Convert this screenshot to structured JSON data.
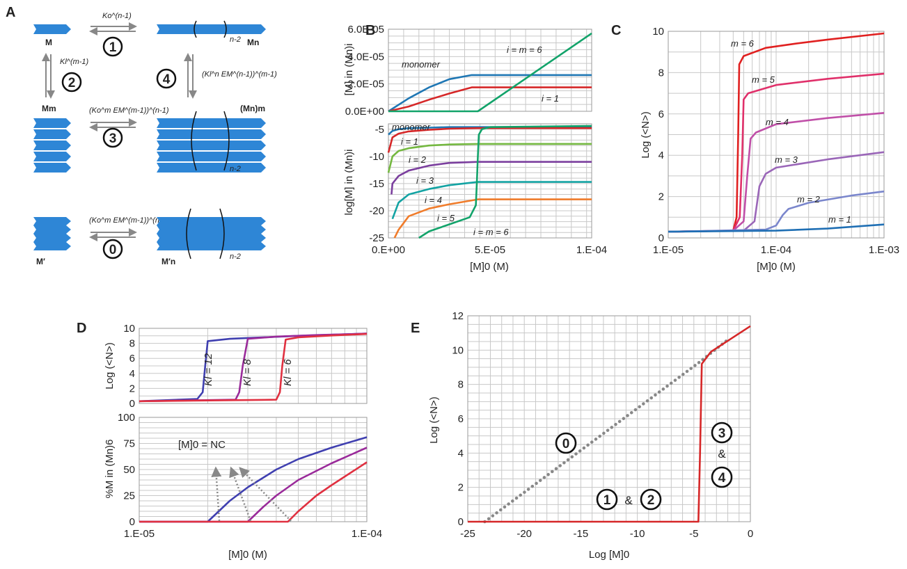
{
  "colors": {
    "blue": "#1f77b4",
    "red": "#d62728",
    "green": "#12a36a",
    "lightgreen": "#74b840",
    "purple": "#7b3f9e",
    "teal": "#13a3a3",
    "orange": "#f07c2b",
    "block": "#2e86d6",
    "grey": "#888888",
    "dblue": "#3f3fb0",
    "dpurple": "#9a2a9a",
    "dred": "#e03040"
  },
  "panel_A": {
    "label": "A",
    "species": {
      "M": "M",
      "Mn": "Mn",
      "Mm": "Mm",
      "Mnm": "(Mn)m",
      "Mp": "M′",
      "Mpn": "M′n"
    },
    "brackets": {
      "n2_a": "n-2",
      "n2_b": "n-2",
      "n2_c": "n-2"
    },
    "steps": [
      {
        "circle": "1",
        "rate": "Ko^(n-1)"
      },
      {
        "circle": "2",
        "rate": "Kl^(m-1)"
      },
      {
        "circle": "3",
        "rate": "(Ko^m EM^(m-1))^(n-1)"
      },
      {
        "circle": "4",
        "rate": "(Kl^n EM^(n-1))^(m-1)"
      },
      {
        "circle": "0",
        "rate": "(Ko^m EM^(m-1))^(n-1)"
      }
    ]
  },
  "chart_data": [
    {
      "panel": "B-top",
      "label": "B",
      "type": "line",
      "xlim": [
        0,
        0.0001
      ],
      "ylim": [
        0,
        6e-05
      ],
      "x_ticks": [
        "0.E+00",
        "5.E-05",
        "1.E-04"
      ],
      "y_ticks": [
        "0.0E+00",
        "2.0E-05",
        "4.0E-05",
        "6.0E-05"
      ],
      "ylabel": "[M] in (Mn)i",
      "series": [
        {
          "name": "monomer",
          "color": "blue",
          "x": [
            0,
            1e-05,
            2e-05,
            3e-05,
            4.1e-05,
            0.0001
          ],
          "y": [
            0,
            9.5e-06,
            1.75e-05,
            2.35e-05,
            2.65e-05,
            2.65e-05
          ]
        },
        {
          "name": "i = 1",
          "color": "red",
          "x": [
            0,
            1e-05,
            2e-05,
            3e-05,
            4.1e-05,
            0.0001
          ],
          "y": [
            0,
            3.5e-06,
            8.5e-06,
            1.3e-05,
            1.75e-05,
            1.75e-05
          ]
        },
        {
          "name": "i = m = 6",
          "color": "green",
          "x": [
            0,
            4.4e-05,
            0.0001
          ],
          "y": [
            0,
            0,
            5.7e-05
          ]
        }
      ]
    },
    {
      "panel": "B-bottom",
      "type": "line",
      "xlim": [
        0,
        0.0001
      ],
      "ylim": [
        -25,
        -4
      ],
      "x_ticks": [
        "0.E+00",
        "5.E-05",
        "1.E-04"
      ],
      "y_ticks": [
        "-5",
        "-10",
        "-15",
        "-20",
        "-25"
      ],
      "xlabel": "[M]0 (M)",
      "ylabel": "log[M] in (Mn)i",
      "series": [
        {
          "name": "monomer",
          "color": "blue",
          "x": [
            0,
            2e-06,
            5e-06,
            1e-05,
            2e-05,
            3e-05,
            4.4e-05,
            0.0001
          ],
          "y": [
            -6,
            -5.3,
            -5,
            -4.8,
            -4.7,
            -4.6,
            -4.6,
            -4.6
          ]
        },
        {
          "name": "i = 1",
          "color": "red",
          "x": [
            0,
            2e-06,
            5e-06,
            1e-05,
            2e-05,
            3e-05,
            4.4e-05,
            0.0001
          ],
          "y": [
            -9.3,
            -6.5,
            -5.8,
            -5.4,
            -5.1,
            -4.9,
            -4.8,
            -4.8
          ]
        },
        {
          "name": "i = 2",
          "color": "lightgreen",
          "x": [
            0,
            2e-06,
            5e-06,
            1e-05,
            2e-05,
            3e-05,
            4.4e-05,
            0.0001
          ],
          "y": [
            -13,
            -10,
            -9,
            -8.5,
            -8,
            -7.8,
            -7.7,
            -7.7
          ]
        },
        {
          "name": "i = 3",
          "color": "purple",
          "x": [
            1.5e-06,
            2e-06,
            5e-06,
            1e-05,
            2e-05,
            3e-05,
            4.4e-05,
            0.0001
          ],
          "y": [
            -17,
            -15,
            -13.6,
            -12.6,
            -11.7,
            -11.2,
            -11,
            -11
          ]
        },
        {
          "name": "i = 4",
          "color": "teal",
          "x": [
            2e-06,
            5e-06,
            1e-05,
            2e-05,
            3e-05,
            4.4e-05,
            0.0001
          ],
          "y": [
            -21.5,
            -18.5,
            -17,
            -16,
            -15.3,
            -14.7,
            -14.7
          ]
        },
        {
          "name": "i = 5",
          "color": "orange",
          "x": [
            3e-06,
            5e-06,
            1e-05,
            2e-05,
            3e-05,
            4.4e-05,
            0.0001
          ],
          "y": [
            -25,
            -23.5,
            -21,
            -19.6,
            -18.8,
            -17.9,
            -17.9
          ]
        },
        {
          "name": "i = m = 6",
          "color": "green",
          "x": [
            1.5e-05,
            2e-05,
            3e-05,
            4e-05,
            4.3e-05,
            4.35e-05,
            4.4e-05,
            4.45e-05,
            4.6e-05,
            5e-05,
            0.0001
          ],
          "y": [
            -25,
            -23.8,
            -22.5,
            -21.2,
            -19,
            -15,
            -10,
            -6,
            -5,
            -4.6,
            -4.4
          ]
        }
      ]
    },
    {
      "panel": "C",
      "label": "C",
      "type": "line",
      "xscale": "log",
      "xlim": [
        1e-05,
        0.001
      ],
      "ylim": [
        0,
        10
      ],
      "x_ticks": [
        "1.E-05",
        "1.E-04",
        "1.E-03"
      ],
      "y_ticks": [
        "0",
        "2",
        "4",
        "6",
        "8",
        "10"
      ],
      "xlabel": "[M]0 (M)",
      "ylabel": "Log (<N>)",
      "series": [
        {
          "name": "m = 6",
          "color": "#e02020",
          "x": [
            1e-05,
            4e-05,
            4.3e-05,
            4.45e-05,
            4.55e-05,
            5e-05,
            8e-05,
            0.00015,
            0.0003,
            0.001
          ],
          "y": [
            0.3,
            0.35,
            1,
            5,
            8.4,
            8.8,
            9.2,
            9.4,
            9.6,
            9.9
          ]
        },
        {
          "name": "m = 5",
          "color": "#e0306a",
          "x": [
            1e-05,
            4e-05,
            4.6e-05,
            4.85e-05,
            5e-05,
            5.5e-05,
            0.0001,
            0.0003,
            0.001
          ],
          "y": [
            0.3,
            0.35,
            1,
            4,
            6.7,
            7,
            7.4,
            7.7,
            7.95
          ]
        },
        {
          "name": "m = 4",
          "color": "#c04fa8",
          "x": [
            1e-05,
            4e-05,
            5e-05,
            5.4e-05,
            5.8e-05,
            6.5e-05,
            0.0001,
            0.0003,
            0.001
          ],
          "y": [
            0.3,
            0.35,
            0.8,
            3,
            4.8,
            5.1,
            5.5,
            5.8,
            6.05
          ]
        },
        {
          "name": "m = 3",
          "color": "#9a66b8",
          "x": [
            1e-05,
            5e-05,
            6.3e-05,
            7e-05,
            8e-05,
            0.0001,
            0.0003,
            0.001
          ],
          "y": [
            0.3,
            0.35,
            0.8,
            2.5,
            3.1,
            3.4,
            3.8,
            4.15
          ]
        },
        {
          "name": "m = 2",
          "color": "#7a86cc",
          "x": [
            1e-05,
            8e-05,
            0.0001,
            0.000115,
            0.00013,
            0.0002,
            0.0005,
            0.001
          ],
          "y": [
            0.3,
            0.4,
            0.6,
            1.1,
            1.4,
            1.7,
            2.05,
            2.25
          ]
        },
        {
          "name": "m = 1",
          "color": "#1f6fb4",
          "x": [
            1e-05,
            0.0001,
            0.0003,
            0.001
          ],
          "y": [
            0.3,
            0.35,
            0.45,
            0.65
          ]
        }
      ]
    },
    {
      "panel": "D-top",
      "label": "D",
      "type": "line",
      "xscale": "log",
      "xlim": [
        1e-05,
        0.0001
      ],
      "ylim": [
        0,
        10
      ],
      "y_ticks": [
        "0",
        "2",
        "4",
        "6",
        "8",
        "10"
      ],
      "ylabel": "Log (<N>)",
      "series": [
        {
          "name": "Kl = 12",
          "color": "dblue",
          "x": [
            1e-05,
            1.8e-05,
            1.9e-05,
            1.95e-05,
            2e-05,
            2.5e-05,
            5e-05,
            0.0001
          ],
          "y": [
            0.3,
            0.6,
            1.5,
            5,
            8.3,
            8.6,
            9,
            9.3
          ]
        },
        {
          "name": "Kl = 8",
          "color": "dpurple",
          "x": [
            1e-05,
            2.65e-05,
            2.75e-05,
            2.85e-05,
            3e-05,
            4e-05,
            6e-05,
            0.0001
          ],
          "y": [
            0.3,
            0.5,
            1.5,
            5,
            8.6,
            8.9,
            9.1,
            9.3
          ]
        },
        {
          "name": "Kl = 6",
          "color": "dred",
          "x": [
            1e-05,
            4e-05,
            4.15e-05,
            4.25e-05,
            4.4e-05,
            5e-05,
            7e-05,
            0.0001
          ],
          "y": [
            0.3,
            0.5,
            1.5,
            5,
            8.5,
            8.8,
            9.05,
            9.25
          ]
        }
      ]
    },
    {
      "panel": "D-bottom",
      "type": "line",
      "xscale": "log",
      "xlim": [
        1e-05,
        0.0001
      ],
      "ylim": [
        0,
        100
      ],
      "x_ticks": [
        "1.E-05",
        "1.E-04"
      ],
      "y_ticks": [
        "0",
        "25",
        "50",
        "75",
        "100"
      ],
      "xlabel": "[M]0 (M)",
      "ylabel": "%M in (Mn)6",
      "annotation": "[M]0 = NC",
      "series": [
        {
          "name": "Kl = 12",
          "color": "dblue",
          "x": [
            1e-05,
            2e-05,
            2.5e-05,
            3e-05,
            4e-05,
            5e-05,
            7e-05,
            0.0001
          ],
          "y": [
            0,
            0,
            20,
            33,
            50,
            60,
            71,
            81
          ]
        },
        {
          "name": "Kl = 8",
          "color": "dpurple",
          "x": [
            1e-05,
            3e-05,
            3.5e-05,
            4e-05,
            5e-05,
            7e-05,
            0.0001
          ],
          "y": [
            0,
            0,
            14,
            25,
            40,
            56,
            71
          ]
        },
        {
          "name": "Kl = 6",
          "color": "dred",
          "x": [
            1e-05,
            4.5e-05,
            5e-05,
            6e-05,
            7e-05,
            0.0001
          ],
          "y": [
            0,
            0,
            10,
            25,
            35,
            57
          ]
        }
      ]
    },
    {
      "panel": "E",
      "label": "E",
      "type": "line",
      "xlim": [
        -25,
        0
      ],
      "ylim": [
        0,
        12
      ],
      "x_ticks": [
        "-25",
        "-20",
        "-15",
        "-10",
        "-5",
        "0"
      ],
      "y_ticks": [
        "0",
        "2",
        "4",
        "6",
        "8",
        "10",
        "12"
      ],
      "xlabel": "Log [M]0",
      "ylabel": "Log (<N>)",
      "series": [
        {
          "name": "0",
          "color": "grey",
          "style": "dotted",
          "x": [
            -23.5,
            -4.5,
            -2
          ],
          "y": [
            0,
            9.3,
            10.6
          ]
        },
        {
          "name": "1&2 / 3&4",
          "color": "red",
          "x": [
            -25,
            -4.6,
            -4.45,
            -4.3,
            -3.5,
            0
          ],
          "y": [
            0,
            0,
            4,
            9.2,
            9.9,
            11.4
          ]
        }
      ]
    }
  ],
  "panel_E_labels": {
    "c0": "0",
    "c1": "1",
    "amp12": "&",
    "c2": "2",
    "c3": "3",
    "amp34": "&",
    "c4": "4"
  }
}
